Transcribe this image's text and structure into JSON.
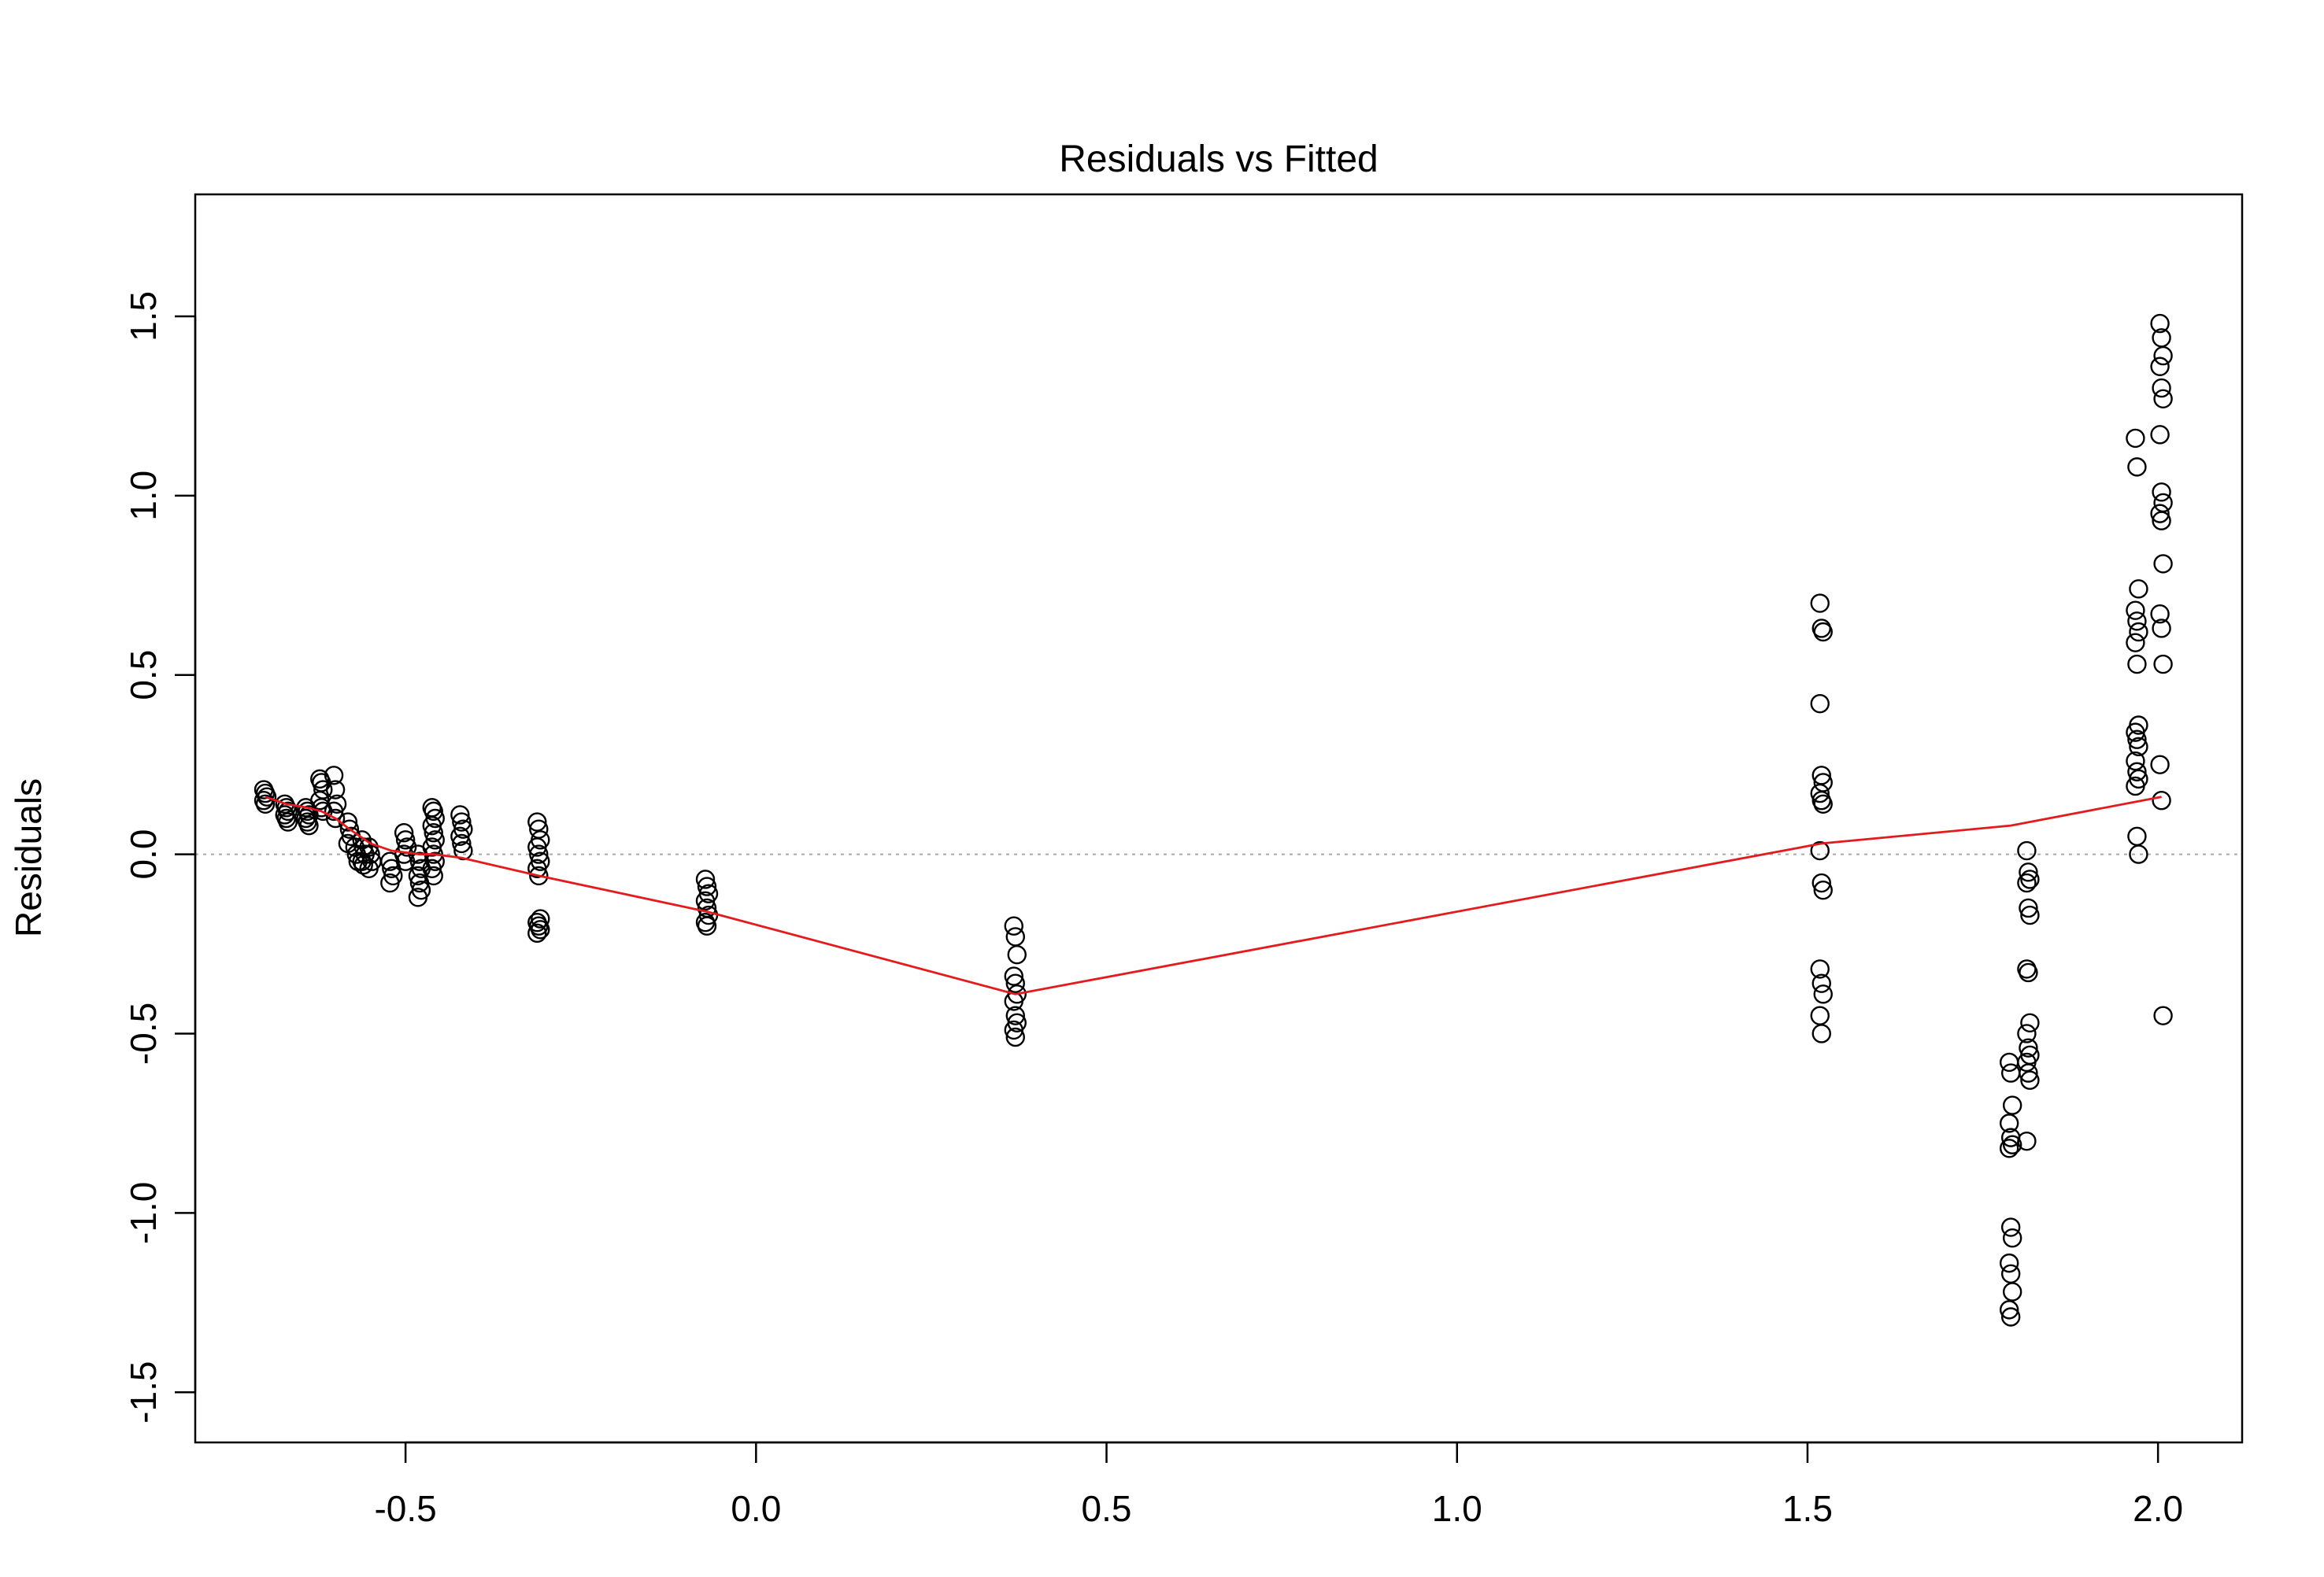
{
  "chart_data": {
    "type": "scatter",
    "title": "Residuals vs Fitted",
    "xlabel": "",
    "ylabel": "Residuals",
    "xlim": [
      -0.8,
      2.12
    ],
    "ylim": [
      -1.64,
      1.84
    ],
    "x_ticks": [
      -0.5,
      0.0,
      0.5,
      1.0,
      1.5,
      2.0
    ],
    "x_tick_labels": [
      "-0.5",
      "0.0",
      "0.5",
      "1.0",
      "1.5",
      "2.0"
    ],
    "y_ticks": [
      -1.5,
      -1.0,
      -0.5,
      0.0,
      0.5,
      1.0,
      1.5
    ],
    "y_tick_labels": [
      "-1.5",
      "-1.0",
      "-0.5",
      "0.0",
      "0.5",
      "1.0",
      "1.5"
    ],
    "grid": false,
    "reference_line": {
      "y": 0,
      "color": "#aaaaaa",
      "style": "dotted"
    },
    "points_color": "#000000",
    "smooth_color": "#e41a1c",
    "groups": [
      {
        "x": -0.7,
        "residuals": [
          0.18,
          0.17,
          0.16,
          0.15,
          0.14
        ]
      },
      {
        "x": -0.67,
        "residuals": [
          0.14,
          0.13,
          0.12,
          0.11,
          0.1,
          0.09
        ]
      },
      {
        "x": -0.64,
        "residuals": [
          0.13,
          0.12,
          0.11,
          0.1,
          0.09,
          0.08
        ]
      },
      {
        "x": -0.62,
        "residuals": [
          0.21,
          0.2,
          0.18,
          0.15,
          0.13,
          0.12
        ]
      },
      {
        "x": -0.6,
        "residuals": [
          0.22,
          0.18,
          0.14,
          0.12,
          0.1
        ]
      },
      {
        "x": -0.58,
        "residuals": [
          0.09,
          0.07,
          0.05,
          0.03
        ]
      },
      {
        "x": -0.57,
        "residuals": [
          0.02,
          0.0,
          -0.02
        ]
      },
      {
        "x": -0.56,
        "residuals": [
          0.04,
          0.02,
          0.0,
          -0.02,
          -0.03
        ]
      },
      {
        "x": -0.55,
        "residuals": [
          0.02,
          0.0,
          -0.02,
          -0.04
        ]
      },
      {
        "x": -0.52,
        "residuals": [
          -0.02,
          -0.04,
          -0.06,
          -0.08
        ]
      },
      {
        "x": -0.5,
        "residuals": [
          0.06,
          0.04,
          0.02,
          0.0,
          -0.02
        ]
      },
      {
        "x": -0.48,
        "residuals": [
          0.0,
          -0.02,
          -0.04,
          -0.06,
          -0.08,
          -0.1,
          -0.12
        ]
      },
      {
        "x": -0.46,
        "residuals": [
          0.13,
          0.12,
          0.1,
          0.08,
          0.06,
          0.04,
          0.02,
          0.0,
          -0.02,
          -0.04,
          -0.06
        ]
      },
      {
        "x": -0.42,
        "residuals": [
          0.11,
          0.09,
          0.07,
          0.05,
          0.03,
          0.01
        ]
      },
      {
        "x": -0.31,
        "residuals": [
          0.09,
          0.07,
          0.04,
          0.02,
          0.0,
          -0.02,
          -0.04,
          -0.06,
          -0.18,
          -0.19,
          -0.2,
          -0.21,
          -0.22
        ]
      },
      {
        "x": -0.07,
        "residuals": [
          -0.07,
          -0.09,
          -0.11,
          -0.13,
          -0.15,
          -0.17,
          -0.19,
          -0.2
        ]
      },
      {
        "x": 0.37,
        "residuals": [
          -0.2,
          -0.23,
          -0.28,
          -0.34,
          -0.36,
          -0.39,
          -0.41,
          -0.45,
          -0.47,
          -0.49,
          -0.51
        ]
      },
      {
        "x": 1.52,
        "residuals": [
          0.7,
          0.63,
          0.62,
          0.42,
          0.22,
          0.2,
          0.17,
          0.15,
          0.14,
          0.01,
          -0.08,
          -0.1,
          -0.32,
          -0.36,
          -0.39,
          -0.45,
          -0.5
        ]
      },
      {
        "x": 1.79,
        "residuals": [
          -0.58,
          -0.61,
          -0.7,
          -0.75,
          -0.79,
          -0.81,
          -0.82,
          -1.04,
          -1.07,
          -1.14,
          -1.17,
          -1.22,
          -1.27,
          -1.29
        ]
      },
      {
        "x": 1.815,
        "residuals": [
          0.01,
          -0.05,
          -0.07,
          -0.08,
          -0.15,
          -0.17,
          -0.32,
          -0.33,
          -0.47,
          -0.5,
          -0.54,
          -0.56,
          -0.58,
          -0.61,
          -0.63,
          -0.8
        ]
      },
      {
        "x": 1.97,
        "residuals": [
          1.16,
          1.08,
          0.74,
          0.68,
          0.65,
          0.62,
          0.59,
          0.53,
          0.36,
          0.34,
          0.32,
          0.3,
          0.26,
          0.23,
          0.21,
          0.19,
          0.05,
          0.0
        ]
      },
      {
        "x": 2.005,
        "residuals": [
          1.48,
          1.44,
          1.39,
          1.36,
          1.3,
          1.27,
          1.17,
          1.01,
          0.98,
          0.95,
          0.93,
          0.81,
          0.67,
          0.63,
          0.53,
          0.25,
          0.15,
          -0.45
        ]
      }
    ],
    "smooth_line": {
      "x": [
        -0.7,
        -0.67,
        -0.64,
        -0.62,
        -0.6,
        -0.58,
        -0.55,
        -0.52,
        -0.48,
        -0.46,
        -0.42,
        -0.31,
        -0.07,
        0.37,
        1.52,
        1.79,
        2.005
      ],
      "y": [
        0.16,
        0.14,
        0.13,
        0.12,
        0.1,
        0.07,
        0.03,
        0.01,
        0.0,
        0.0,
        -0.01,
        -0.06,
        -0.16,
        -0.39,
        0.03,
        0.08,
        0.16
      ]
    }
  }
}
